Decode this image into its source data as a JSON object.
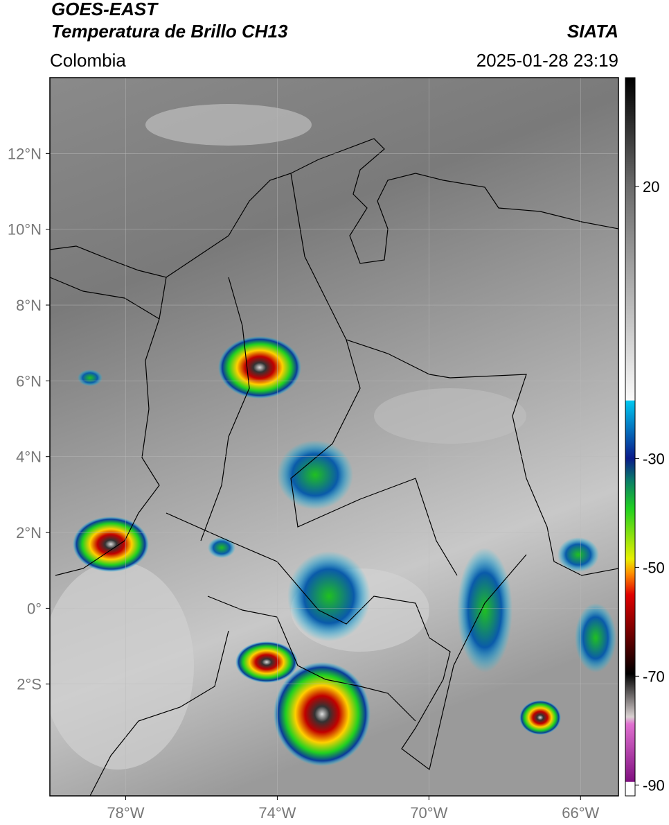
{
  "header": {
    "title": "GOES-EAST",
    "subtitle": "Temperatura de Brillo CH13",
    "source": "SIATA",
    "region": "Colombia",
    "datetime": "2025-01-28 23:19"
  },
  "map": {
    "lonlim": [
      -80,
      -65
    ],
    "latlim": [
      -4.95,
      14
    ],
    "lonticks": [
      {
        "value": -78,
        "label": "78°W"
      },
      {
        "value": -74,
        "label": "74°W"
      },
      {
        "value": -70,
        "label": "70°W"
      },
      {
        "value": -66,
        "label": "66°W"
      }
    ],
    "latticks": [
      {
        "value": 12,
        "label": "12°N"
      },
      {
        "value": 10,
        "label": "10°N"
      },
      {
        "value": 8,
        "label": "8°N"
      },
      {
        "value": 6,
        "label": "6°N"
      },
      {
        "value": 4,
        "label": "4°N"
      },
      {
        "value": 2,
        "label": "2°N"
      },
      {
        "value": 0,
        "label": "0°"
      },
      {
        "value": -2,
        "label": "2°S"
      }
    ],
    "grid": true
  },
  "colorbar": {
    "lim": [
      -92,
      40
    ],
    "ticks": [
      20,
      -30,
      -50,
      -70,
      -90
    ]
  }
}
